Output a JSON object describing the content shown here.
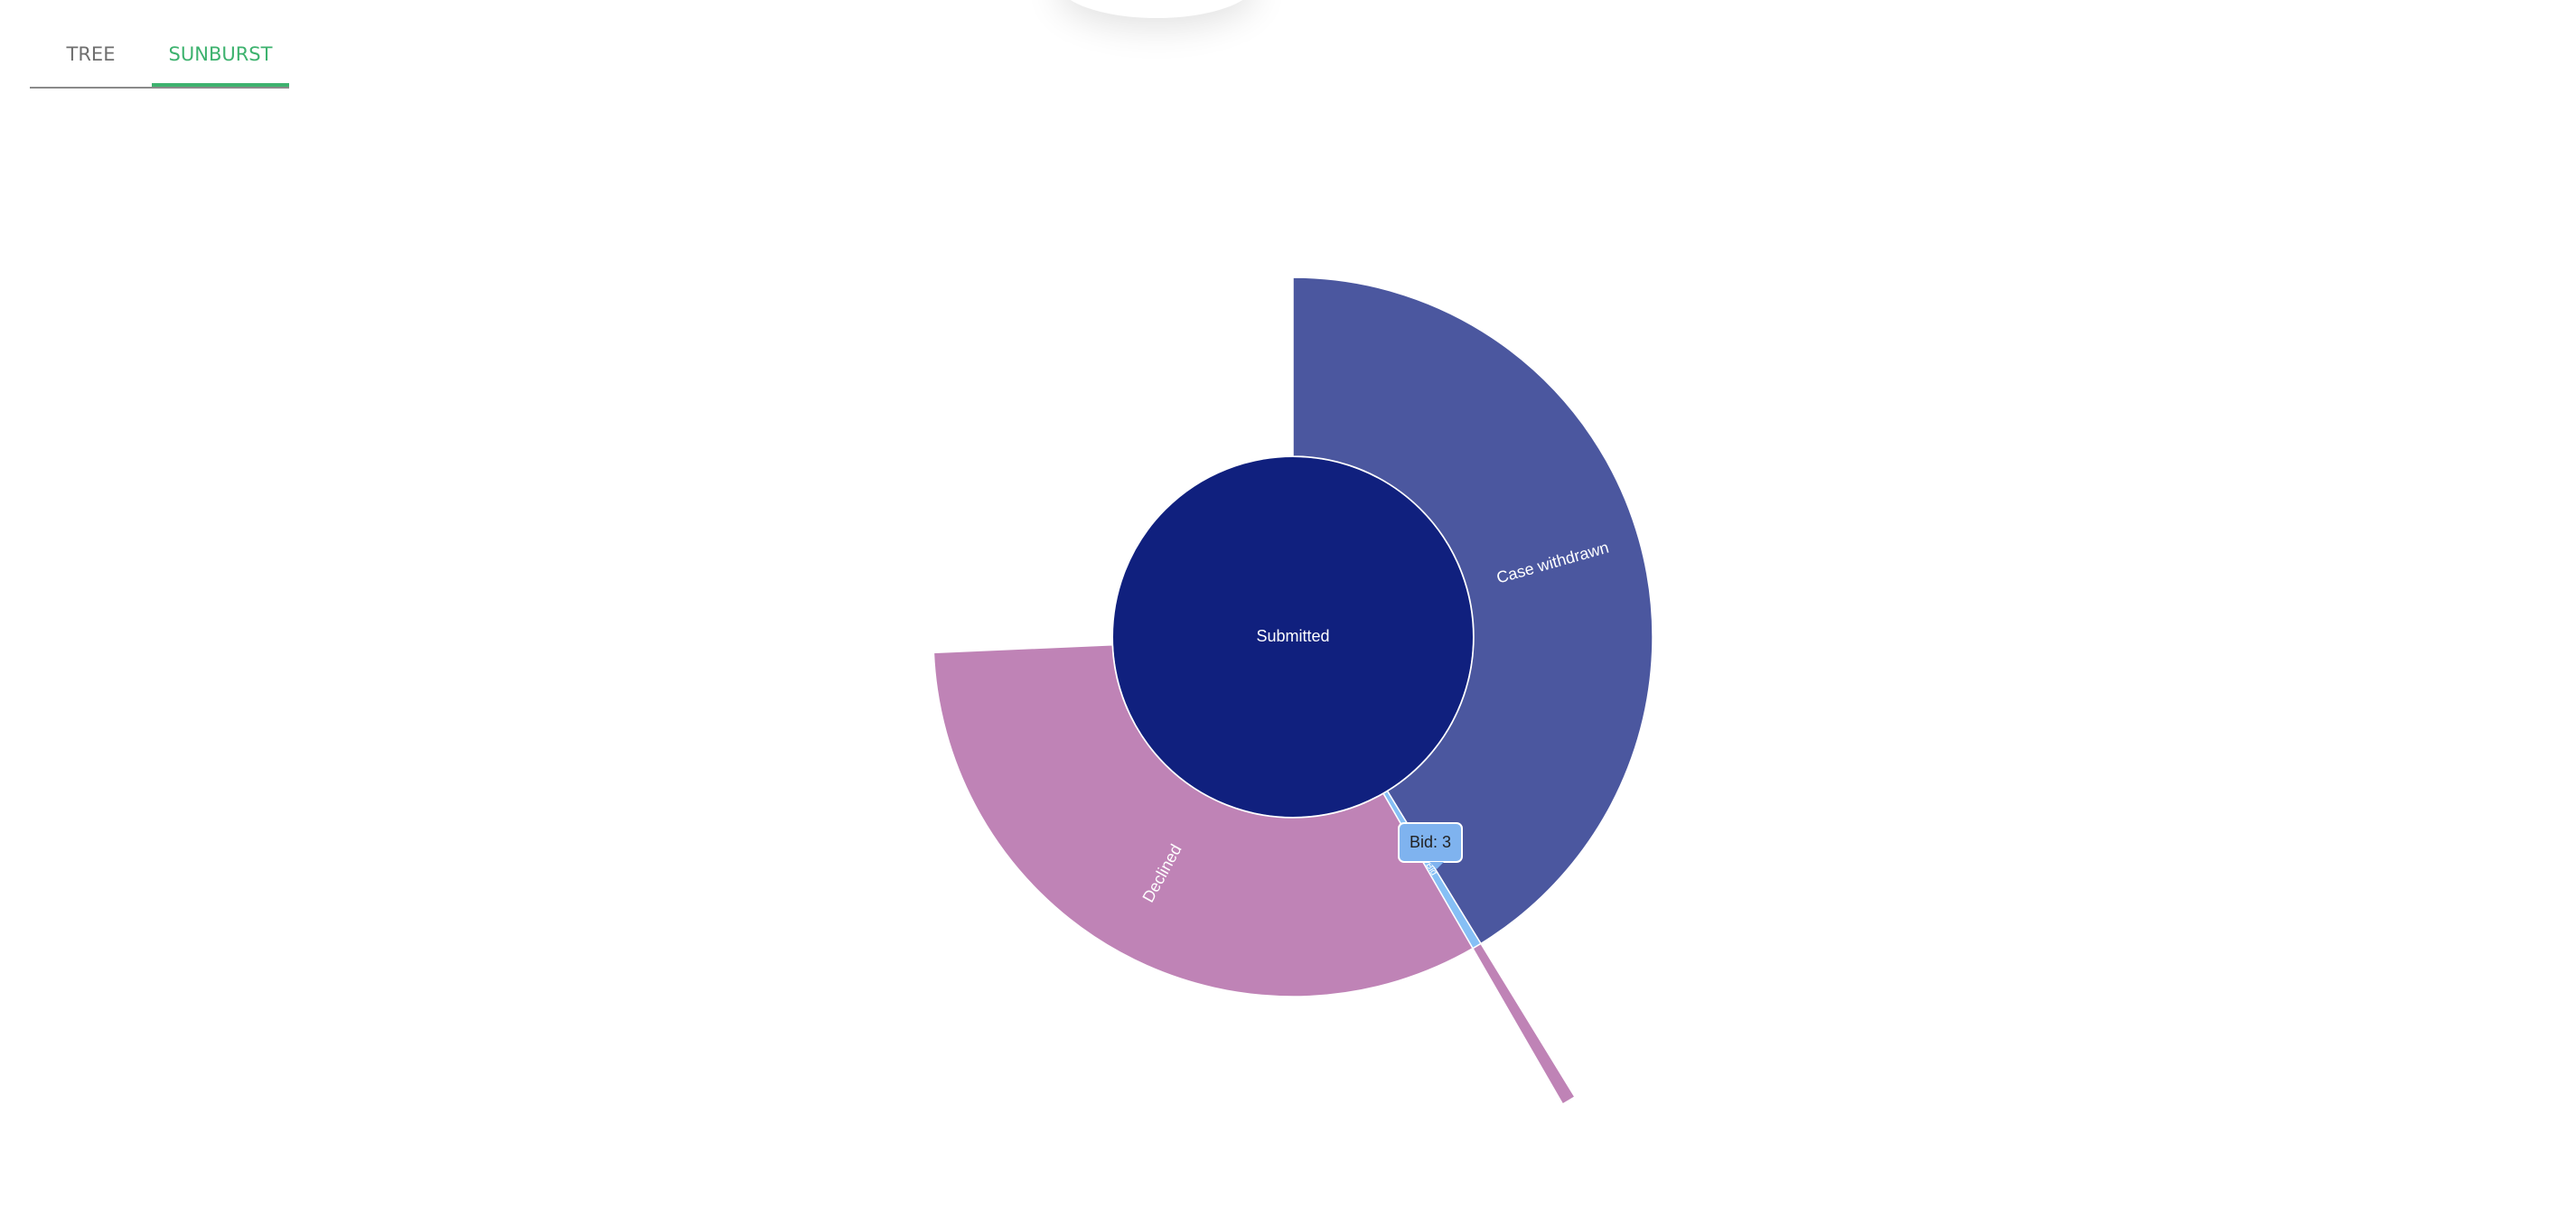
{
  "tabs": [
    {
      "label": "TREE",
      "active": false
    },
    {
      "label": "SUNBURST",
      "active": true
    }
  ],
  "tooltip": {
    "text": "Bid: 3"
  },
  "chart_data": {
    "type": "sunburst",
    "root": {
      "name": "Submitted",
      "value": 720,
      "color": "#10207e"
    },
    "children": [
      {
        "name": "Case withdrawn",
        "value": 297,
        "color": "#4b579f"
      },
      {
        "name": "Bid",
        "value": 3,
        "color": "#86bff5",
        "children": [
          {
            "name": "",
            "value": 3,
            "color": "#bf83b6"
          }
        ]
      },
      {
        "name": "Declined",
        "value": 235,
        "color": "#bf83b6"
      }
    ]
  }
}
